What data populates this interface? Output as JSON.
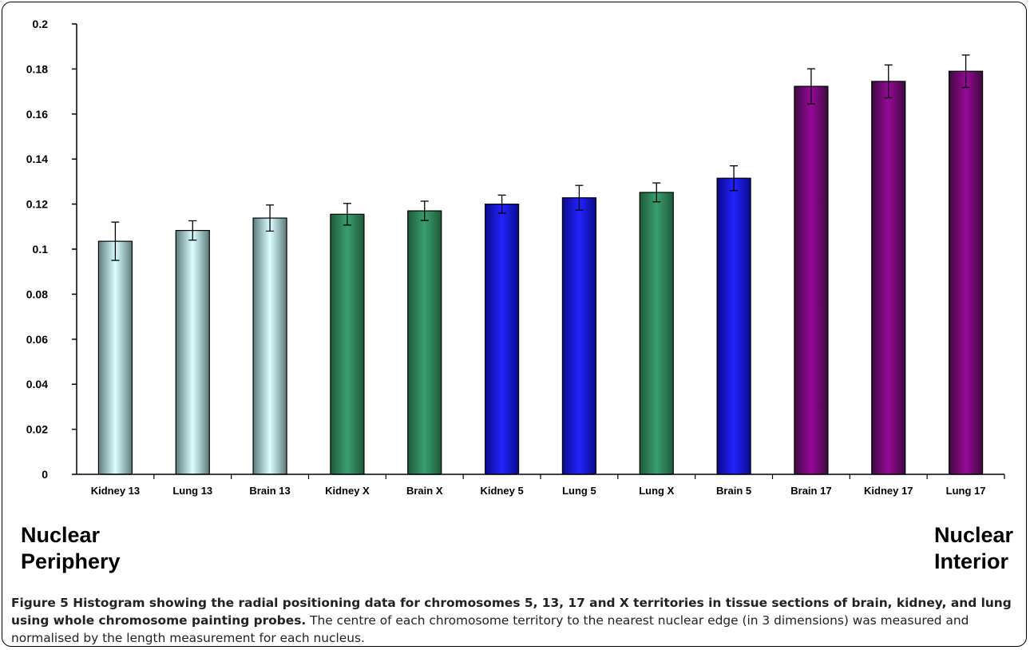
{
  "chart_data": {
    "type": "bar",
    "categories": [
      "Kidney 13",
      "Lung 13",
      "Brain 13",
      "Kidney X",
      "Brain X",
      "Kidney 5",
      "Lung 5",
      "Lung X",
      "Brain 5",
      "Brain 17",
      "Kidney 17",
      "Lung 17"
    ],
    "values": [
      0.1035,
      0.1083,
      0.1138,
      0.1155,
      0.117,
      0.12,
      0.1228,
      0.1252,
      0.1315,
      0.1723,
      0.1745,
      0.179
    ],
    "errors": [
      0.0085,
      0.0043,
      0.0058,
      0.0048,
      0.0043,
      0.004,
      0.0055,
      0.0042,
      0.0055,
      0.0078,
      0.0073,
      0.0072
    ],
    "bar_colors": [
      "gray-cyan",
      "gray-cyan",
      "gray-cyan",
      "green",
      "green",
      "blue",
      "blue",
      "green",
      "blue",
      "purple",
      "purple",
      "purple"
    ],
    "palette": {
      "gray-cyan": {
        "edge": "#5b7c7c",
        "center": "#dcffff"
      },
      "green": {
        "edge": "#1d5a38",
        "center": "#3a9e70"
      },
      "blue": {
        "edge": "#0a0a8c",
        "center": "#2323ff"
      },
      "purple": {
        "edge": "#3c0a40",
        "center": "#980898"
      }
    },
    "ylim": [
      0,
      0.2
    ],
    "yticks": [
      "0",
      "0.02",
      "0.04",
      "0.06",
      "0.08",
      "0.1",
      "0.12",
      "0.14",
      "0.16",
      "0.18",
      "0.2"
    ],
    "title": "",
    "xlabel": "",
    "ylabel": "",
    "grid": false
  },
  "arrow": {
    "left_label_line1": "Nuclear",
    "left_label_line2": "Periphery",
    "right_label_line1": "Nuclear",
    "right_label_line2": "Interior"
  },
  "caption": {
    "title": "Figure 5 Histogram showing the radial positioning data for chromosomes 5, 13, 17 and X territories in tissue sections of brain, kidney, and lung using whole chromosome painting probes.",
    "body": " The centre of each chromosome territory to the nearest nuclear edge (in 3 dimensions) was measured and normalised by the length measurement for each nucleus."
  }
}
